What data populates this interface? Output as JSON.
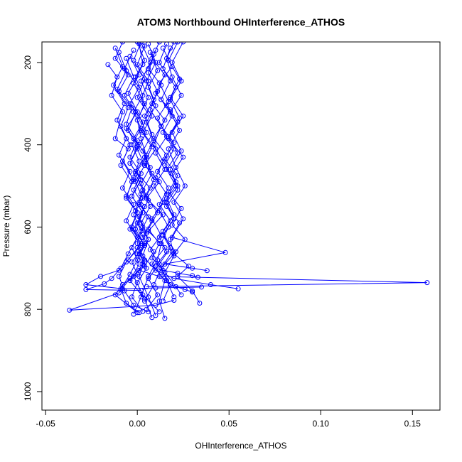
{
  "chart_data": {
    "type": "line",
    "title": "ATOM3 Northbound OHInterference_ATHOS",
    "xlabel": "OHInterference_ATHOS",
    "ylabel": "Pressure (mbar)",
    "xlim": [
      -0.052,
      0.165
    ],
    "ylim": [
      1045,
      150
    ],
    "y_reversed": true,
    "xticks": [
      -0.05,
      0.0,
      0.05,
      0.1,
      0.15
    ],
    "xtick_labels": [
      "-0.05",
      "0.00",
      "0.05",
      "0.10",
      "0.15"
    ],
    "yticks": [
      200,
      400,
      600,
      800,
      1000
    ],
    "ytick_labels": [
      "200",
      "400",
      "600",
      "800",
      "1000"
    ],
    "series_color": "#0000ff",
    "grid": false,
    "series": [
      {
        "x": [
          0.001,
          0.003,
          -0.002,
          0.004,
          0.0,
          0.002,
          0.005,
          -0.001,
          0.003,
          0.001,
          0.006,
          0.002,
          0.004,
          0.0,
          0.003,
          0.001,
          0.012,
          0.158,
          0.005
        ],
        "y": [
          155,
          205,
          250,
          300,
          340,
          385,
          430,
          470,
          510,
          540,
          575,
          610,
          640,
          665,
          690,
          705,
          720,
          735,
          745
        ]
      },
      {
        "x": [
          -0.008,
          -0.012,
          -0.005,
          -0.01,
          -0.003,
          -0.006,
          0.0,
          -0.004,
          0.002,
          -0.002,
          0.004,
          0.0,
          0.006,
          0.003,
          0.01,
          0.02,
          0.04,
          0.055
        ],
        "y": [
          150,
          190,
          230,
          270,
          310,
          350,
          390,
          430,
          470,
          510,
          550,
          590,
          630,
          670,
          705,
          725,
          740,
          750
        ]
      },
      {
        "x": [
          0.012,
          0.008,
          0.015,
          0.01,
          0.018,
          0.013,
          0.02,
          0.015,
          0.022,
          0.017,
          0.024,
          0.019,
          0.026,
          0.02,
          0.028,
          0.022,
          0.03,
          0.034
        ],
        "y": [
          150,
          190,
          230,
          275,
          315,
          355,
          395,
          435,
          475,
          515,
          555,
          595,
          630,
          665,
          695,
          720,
          755,
          785
        ]
      },
      {
        "x": [
          0.004,
          0.0,
          0.006,
          0.002,
          0.008,
          0.003,
          0.01,
          0.004,
          0.012,
          0.005,
          0.014,
          0.006,
          0.015,
          0.008,
          0.015,
          0.012,
          0.015
        ],
        "y": [
          160,
          205,
          245,
          290,
          330,
          370,
          410,
          450,
          490,
          530,
          570,
          610,
          650,
          690,
          730,
          780,
          822
        ]
      },
      {
        "x": [
          -0.016,
          -0.011,
          -0.014,
          -0.008,
          -0.012,
          -0.005,
          -0.009,
          -0.003,
          -0.006,
          0.0,
          -0.003,
          0.002,
          -0.005,
          -0.01,
          -0.02,
          -0.028,
          -0.008,
          0.01,
          0.035
        ],
        "y": [
          205,
          235,
          280,
          320,
          385,
          410,
          450,
          490,
          530,
          565,
          600,
          640,
          680,
          705,
          720,
          740,
          750,
          748,
          746
        ]
      },
      {
        "x": [
          0.018,
          0.014,
          0.021,
          0.016,
          0.022,
          0.017,
          0.025,
          0.019,
          0.022,
          0.016,
          0.023,
          0.018,
          0.02,
          0.015,
          0.021,
          0.024
        ],
        "y": [
          165,
          215,
          260,
          305,
          345,
          385,
          430,
          470,
          510,
          550,
          590,
          630,
          670,
          710,
          745,
          765
        ]
      },
      {
        "x": [
          -0.002,
          -0.007,
          0.001,
          -0.004,
          0.003,
          -0.002,
          0.005,
          -0.001,
          0.007,
          0.001,
          0.008,
          0.003,
          0.009,
          0.004,
          -0.004,
          -0.01,
          -0.037,
          0.01,
          0.02
        ],
        "y": [
          170,
          215,
          260,
          300,
          345,
          385,
          425,
          465,
          505,
          545,
          585,
          625,
          660,
          695,
          725,
          760,
          802,
          790,
          778
        ]
      },
      {
        "x": [
          0.009,
          0.006,
          0.011,
          0.007,
          0.013,
          0.009,
          0.014,
          0.01,
          0.016,
          0.012,
          0.017,
          0.013,
          0.011,
          0.006,
          0.002,
          -0.002
        ],
        "y": [
          180,
          225,
          270,
          315,
          355,
          400,
          440,
          480,
          520,
          560,
          600,
          640,
          680,
          720,
          770,
          812
        ]
      },
      {
        "x": [
          0.02,
          0.016,
          0.019,
          0.024,
          0.018,
          0.023,
          0.017,
          0.021,
          0.026,
          0.02,
          0.025,
          0.019,
          0.048,
          0.015,
          0.03,
          0.038
        ],
        "y": [
          150,
          190,
          235,
          280,
          320,
          365,
          410,
          455,
          500,
          540,
          580,
          625,
          662,
          690,
          700,
          706
        ]
      },
      {
        "x": [
          -0.01,
          -0.006,
          -0.011,
          -0.005,
          -0.009,
          -0.004,
          -0.008,
          -0.002,
          -0.006,
          0.0,
          -0.004,
          0.002,
          -0.006,
          -0.01,
          -0.007,
          -0.002,
          0.006
        ],
        "y": [
          175,
          220,
          265,
          310,
          355,
          400,
          440,
          485,
          525,
          565,
          605,
          645,
          685,
          720,
          755,
          790,
          806
        ]
      },
      {
        "x": [
          0.006,
          0.01,
          0.005,
          0.009,
          0.004,
          0.008,
          0.003,
          0.007,
          0.002,
          0.006,
          0.001,
          0.005,
          0.0,
          0.004,
          -0.002,
          0.003,
          0.012
        ],
        "y": [
          155,
          200,
          245,
          290,
          330,
          375,
          415,
          455,
          495,
          535,
          575,
          615,
          650,
          685,
          720,
          765,
          806
        ]
      },
      {
        "x": [
          0.014,
          0.019,
          0.012,
          0.017,
          0.011,
          0.016,
          0.01,
          0.015,
          0.009,
          0.014,
          0.008,
          0.013,
          0.007,
          0.012,
          0.006,
          0.011,
          0.005
        ],
        "y": [
          165,
          210,
          250,
          295,
          335,
          380,
          420,
          460,
          500,
          540,
          580,
          620,
          655,
          690,
          725,
          765,
          800
        ]
      },
      {
        "x": [
          -0.004,
          0.001,
          -0.005,
          0.0,
          -0.006,
          0.001,
          -0.004,
          0.002,
          -0.003,
          0.003,
          -0.002,
          0.004,
          -0.003,
          0.0,
          -0.008,
          -0.012,
          0.0
        ],
        "y": [
          185,
          230,
          275,
          320,
          360,
          400,
          445,
          485,
          525,
          565,
          605,
          645,
          685,
          715,
          740,
          765,
          808
        ]
      },
      {
        "x": [
          0.002,
          -0.002,
          0.004,
          0.0,
          0.006,
          0.002,
          0.008,
          0.004,
          0.009,
          0.005,
          0.011,
          0.006,
          0.012,
          0.008,
          0.014,
          0.022,
          0.03,
          0.033
        ],
        "y": [
          150,
          195,
          240,
          285,
          325,
          365,
          405,
          445,
          485,
          525,
          565,
          605,
          640,
          675,
          705,
          712,
          718,
          722
        ]
      },
      {
        "x": [
          0.022,
          0.017,
          0.023,
          0.018,
          0.025,
          0.019,
          0.024,
          0.018,
          0.022,
          0.016,
          0.02,
          0.014,
          0.021,
          0.013,
          0.009,
          0.004
        ],
        "y": [
          150,
          195,
          240,
          285,
          330,
          370,
          415,
          460,
          500,
          540,
          580,
          620,
          660,
          700,
          740,
          780
        ]
      },
      {
        "x": [
          0.003,
          0.007,
          0.002,
          0.006,
          0.001,
          0.005,
          0.0,
          0.004,
          -0.001,
          0.003,
          -0.002,
          0.002,
          -0.003,
          0.001,
          -0.004,
          0.004,
          0.008
        ],
        "y": [
          160,
          200,
          245,
          285,
          330,
          370,
          410,
          450,
          490,
          530,
          570,
          610,
          650,
          690,
          730,
          775,
          820
        ]
      },
      {
        "x": [
          0.01,
          0.006,
          0.013,
          0.008,
          0.015,
          0.009,
          0.016,
          0.011,
          0.017,
          0.012,
          0.018,
          0.012,
          0.016,
          0.01,
          0.013,
          0.018,
          0.026,
          0.03
        ],
        "y": [
          170,
          215,
          255,
          300,
          340,
          385,
          425,
          465,
          505,
          545,
          585,
          625,
          660,
          695,
          720,
          740,
          752,
          758
        ]
      },
      {
        "x": [
          -0.006,
          -0.002,
          -0.007,
          -0.001,
          -0.005,
          0.0,
          -0.004,
          0.002,
          -0.003,
          0.003,
          -0.001,
          0.004,
          0.0,
          -0.004,
          -0.009,
          -0.006,
          0.001
        ],
        "y": [
          190,
          235,
          280,
          320,
          365,
          405,
          445,
          485,
          525,
          565,
          605,
          645,
          680,
          715,
          750,
          785,
          808
        ]
      },
      {
        "x": [
          0.016,
          0.012,
          0.018,
          0.013,
          0.019,
          0.014,
          0.02,
          0.015,
          0.021,
          0.016,
          0.02,
          0.014,
          0.018,
          0.012,
          0.016,
          0.02
        ],
        "y": [
          155,
          200,
          245,
          290,
          330,
          370,
          410,
          450,
          490,
          530,
          570,
          610,
          650,
          690,
          730,
          770
        ]
      },
      {
        "x": [
          0.0,
          0.004,
          -0.001,
          0.003,
          -0.002,
          0.002,
          -0.003,
          0.001,
          -0.002,
          0.002,
          -0.001,
          0.003,
          0.0,
          0.004,
          0.001,
          0.006,
          0.01
        ],
        "y": [
          150,
          195,
          235,
          280,
          320,
          360,
          400,
          440,
          480,
          520,
          560,
          600,
          640,
          680,
          720,
          770,
          815
        ]
      },
      {
        "x": [
          0.007,
          0.011,
          0.006,
          0.01,
          0.005,
          0.009,
          0.004,
          0.008,
          0.003,
          0.007,
          0.002,
          0.006,
          0.001,
          0.005,
          0.0,
          -0.003,
          0.003
        ],
        "y": [
          175,
          220,
          260,
          305,
          345,
          390,
          430,
          470,
          510,
          550,
          590,
          630,
          665,
          700,
          735,
          770,
          805
        ]
      },
      {
        "x": [
          0.025,
          0.019,
          0.024,
          0.018,
          0.023,
          0.017,
          0.022,
          0.016,
          0.021,
          0.015,
          0.02,
          0.014,
          0.019,
          0.013,
          0.018,
          0.014
        ],
        "y": [
          150,
          200,
          245,
          290,
          335,
          380,
          420,
          460,
          500,
          540,
          580,
          620,
          660,
          700,
          740,
          780
        ]
      },
      {
        "x": [
          -0.012,
          -0.008,
          -0.013,
          -0.007,
          -0.011,
          -0.006,
          -0.01,
          -0.004,
          -0.008,
          -0.002,
          -0.006,
          0.0,
          -0.005,
          -0.009,
          -0.014,
          -0.018,
          -0.028,
          0.002
        ],
        "y": [
          165,
          210,
          255,
          300,
          340,
          385,
          425,
          465,
          505,
          545,
          585,
          625,
          665,
          700,
          725,
          738,
          752,
          754
        ]
      }
    ]
  }
}
